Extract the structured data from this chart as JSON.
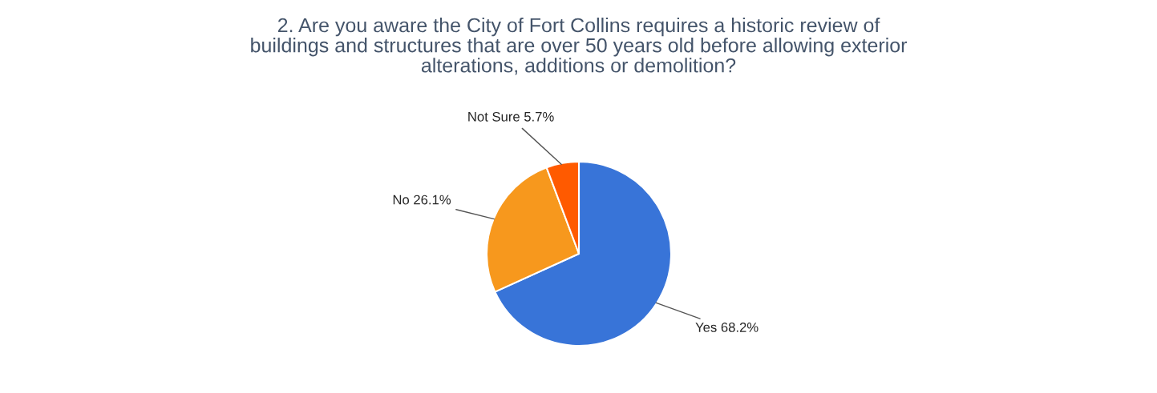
{
  "chart_data": {
    "type": "pie",
    "title": "2. Are you aware the City of Fort Collins requires a historic review of\nbuildings and structures that are over 50 years old before allowing exterior\nalterations, additions or demolition?",
    "categories": [
      "Yes",
      "No",
      "Not Sure"
    ],
    "values": [
      68.2,
      26.1,
      5.7
    ],
    "value_labels": [
      "68.2%",
      "26.1%",
      "5.7%"
    ],
    "colors": [
      "#3874d8",
      "#f7981d",
      "#ff5a00"
    ],
    "legend": false
  }
}
